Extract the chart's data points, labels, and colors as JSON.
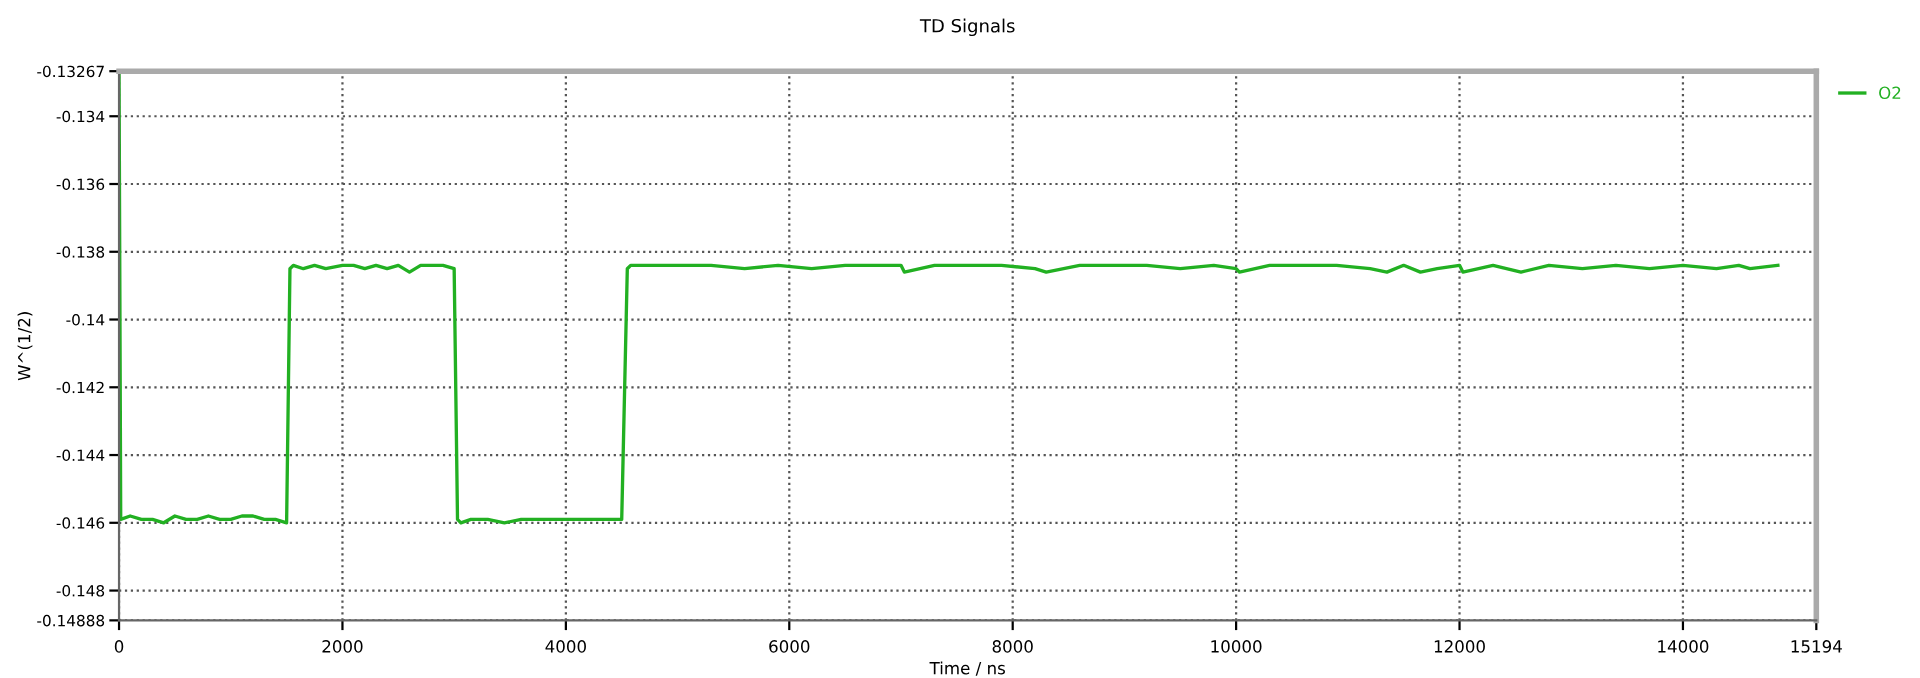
{
  "chart_data": {
    "type": "line",
    "title": "TD Signals",
    "xlabel": "Time / ns",
    "ylabel": "W^(1/2)",
    "xlim": [
      0,
      15194
    ],
    "xticks": [
      0,
      2000,
      4000,
      6000,
      8000,
      10000,
      12000,
      14000,
      15194
    ],
    "ylim": [
      -0.14888,
      -0.13267
    ],
    "yticks": [
      -0.14888,
      -0.148,
      -0.146,
      -0.144,
      -0.142,
      -0.14,
      -0.138,
      -0.136,
      -0.134,
      -0.13267
    ],
    "grid": true,
    "legend": "top right",
    "marker": "none",
    "line_style": "solid",
    "series": [
      {
        "name": "O2",
        "color": "#22b022",
        "x": [
          0,
          15,
          100,
          200,
          300,
          400,
          500,
          600,
          700,
          800,
          900,
          1000,
          1100,
          1200,
          1300,
          1400,
          1500,
          1530,
          1560,
          1650,
          1750,
          1850,
          2000,
          2100,
          2200,
          2300,
          2400,
          2500,
          2600,
          2700,
          2800,
          2900,
          3000,
          3030,
          3060,
          3150,
          3300,
          3450,
          3600,
          3750,
          3900,
          4050,
          4200,
          4350,
          4500,
          4550,
          4580,
          4700,
          5000,
          5300,
          5600,
          5900,
          6200,
          6500,
          6800,
          7000,
          7030,
          7300,
          7600,
          7900,
          8200,
          8300,
          8600,
          8900,
          9200,
          9500,
          9800,
          10000,
          10030,
          10300,
          10600,
          10900,
          11200,
          11350,
          11500,
          11650,
          11800,
          12000,
          12030,
          12300,
          12550,
          12800,
          13100,
          13400,
          13700,
          14000,
          14300,
          14500,
          14600,
          14850
        ],
        "values": [
          -0.13267,
          -0.1459,
          -0.1458,
          -0.1459,
          -0.1459,
          -0.146,
          -0.1458,
          -0.1459,
          -0.1459,
          -0.1458,
          -0.1459,
          -0.1459,
          -0.1458,
          -0.1458,
          -0.1459,
          -0.1459,
          -0.146,
          -0.1385,
          -0.1384,
          -0.1385,
          -0.1384,
          -0.1385,
          -0.1384,
          -0.1384,
          -0.1385,
          -0.1384,
          -0.1385,
          -0.1384,
          -0.1386,
          -0.1384,
          -0.1384,
          -0.1384,
          -0.1385,
          -0.1459,
          -0.146,
          -0.1459,
          -0.1459,
          -0.146,
          -0.1459,
          -0.1459,
          -0.1459,
          -0.1459,
          -0.1459,
          -0.1459,
          -0.1459,
          -0.1385,
          -0.1384,
          -0.1384,
          -0.1384,
          -0.1384,
          -0.1385,
          -0.1384,
          -0.1385,
          -0.1384,
          -0.1384,
          -0.1384,
          -0.1386,
          -0.1384,
          -0.1384,
          -0.1384,
          -0.1385,
          -0.1386,
          -0.1384,
          -0.1384,
          -0.1384,
          -0.1385,
          -0.1384,
          -0.1385,
          -0.1386,
          -0.1384,
          -0.1384,
          -0.1384,
          -0.1385,
          -0.1386,
          -0.1384,
          -0.1386,
          -0.1385,
          -0.1384,
          -0.1386,
          -0.1384,
          -0.1386,
          -0.1384,
          -0.1385,
          -0.1384,
          -0.1385,
          -0.1384,
          -0.1385,
          -0.1384,
          -0.1385,
          -0.1384
        ]
      }
    ]
  }
}
